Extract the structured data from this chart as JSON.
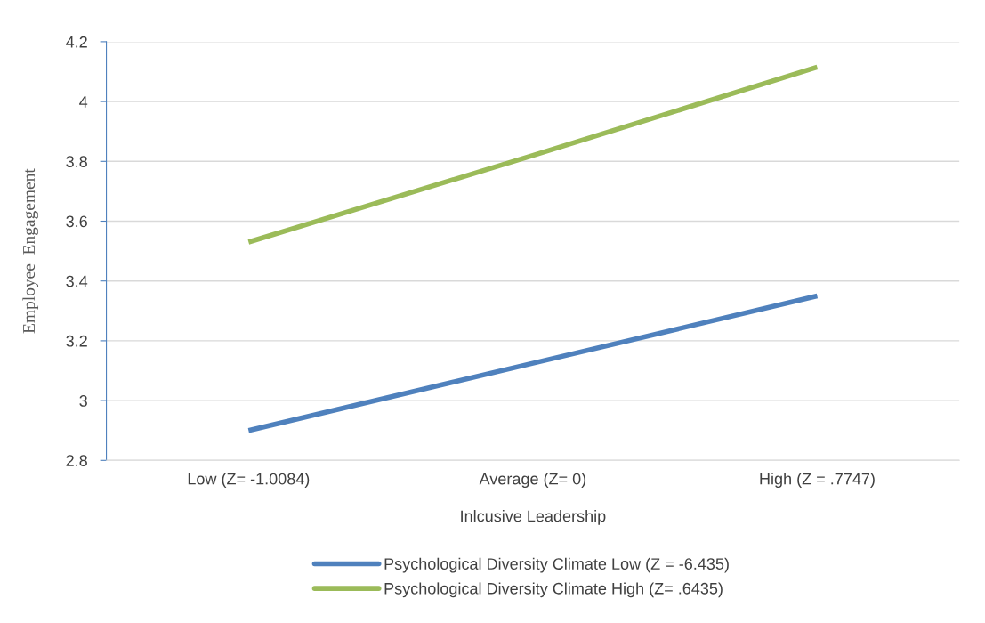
{
  "chart_data": {
    "type": "line",
    "xlabel": "Inlcusive Leadership",
    "ylabel": "Employee  Engagement",
    "categories": [
      "Low (Z= -1.0084)",
      "Average (Z= 0)",
      "High (Z = .7747)"
    ],
    "series": [
      {
        "name": "Psychological Diversity Climate Low (Z = -6.435)",
        "color": "#4f81bd",
        "values": [
          2.9,
          3.125,
          3.35
        ]
      },
      {
        "name": "Psychological Diversity Climate High (Z= .6435)",
        "color": "#9bbb59",
        "values": [
          3.53,
          3.82,
          4.115
        ]
      }
    ],
    "ylim": [
      2.8,
      4.2
    ],
    "yticks": [
      2.8,
      3,
      3.2,
      3.4,
      3.6,
      3.8,
      4,
      4.2
    ],
    "grid": "y",
    "legend": "bottom",
    "marker": "none",
    "line_style": "solid"
  }
}
